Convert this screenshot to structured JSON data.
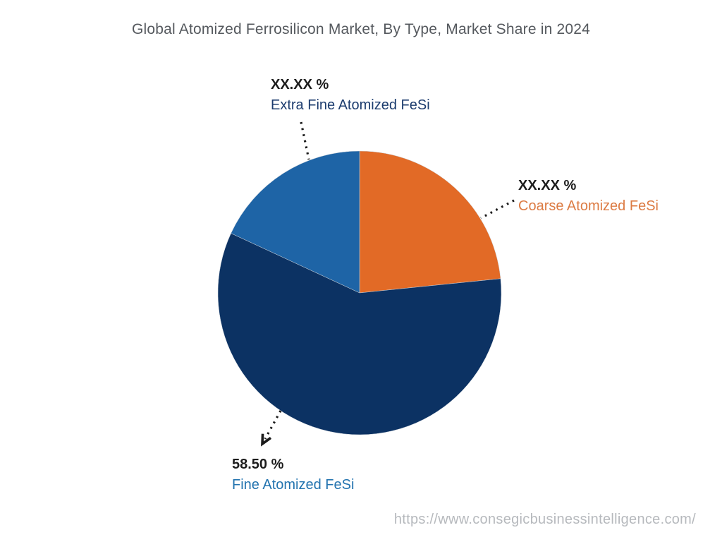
{
  "chart_data": {
    "type": "pie",
    "title": "Global Atomized Ferrosilicon Market, By Type, Market Share in 2024",
    "start_angle_deg": 0,
    "direction": "clockwise",
    "legend_position": "none",
    "slices": [
      {
        "label": "Coarse Atomized FeSi",
        "display_value": "XX.XX %",
        "value_pct_est": 23.4,
        "color": "#e26a26",
        "label_color": "#dc7b43"
      },
      {
        "label": "Fine Atomized FeSi",
        "display_value": "58.50 %",
        "value_pct_est": 58.5,
        "color": "#0c3263",
        "label_color": "#2273af"
      },
      {
        "label": "Extra Fine Atomized FeSi",
        "display_value": "XX.XX %",
        "value_pct_est": 18.1,
        "color": "#1e64a6",
        "label_color": "#1c3c6e"
      }
    ],
    "annotation_line_color": "#1a1a1a"
  },
  "watermark": {
    "text": "https://www.consegicbusinessintelligence.com/"
  }
}
